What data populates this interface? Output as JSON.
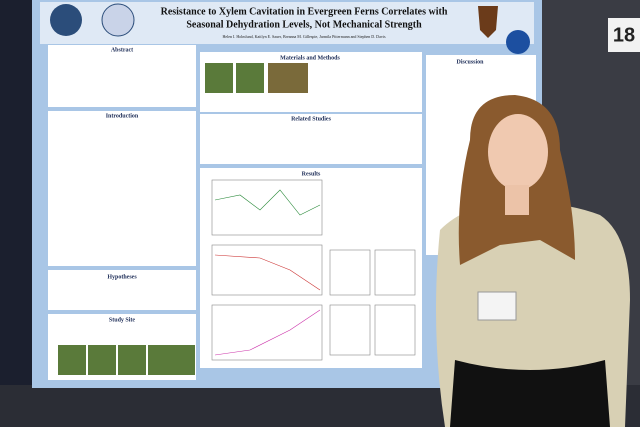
{
  "board_number": "18",
  "poster": {
    "title": [
      "Resistance to Xylem Cavitation in Evergreen Ferns Correlates with",
      "Seasonal Dehydration Levels, Not Mechanical Strength"
    ],
    "authors": "Helen I. Holmlund, Kaitlyn E. Sauer, Breanna M. Gillespie, Jarmila Pittermann and Stephen D. Davis",
    "sections": [
      "Abstract",
      "Materials and Methods",
      "Introduction",
      "Related Studies",
      "Results",
      "Hypotheses",
      "Study Site",
      "Discussion"
    ]
  }
}
